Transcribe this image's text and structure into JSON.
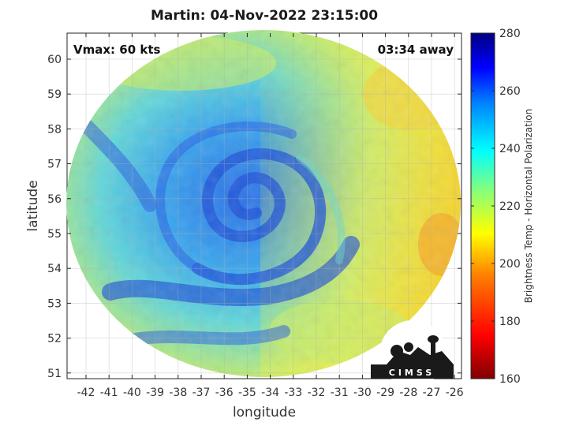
{
  "title": "Martin: 04-Nov-2022 23:15:00",
  "vmax_label": "Vmax: 60 kts",
  "time_away_label": "03:34 away",
  "x_axis_label": "longitude",
  "y_axis_label": "latitude",
  "colorbar_label": "Brightness Temp - Horizontal Polarization",
  "logo_text": "CIMSS",
  "x_ticks": [
    "-42",
    "-41",
    "-40",
    "-39",
    "-38",
    "-37",
    "-36",
    "-35",
    "-34",
    "-33",
    "-32",
    "-31",
    "-30",
    "-29",
    "-28",
    "-27",
    "-26"
  ],
  "y_ticks": [
    "60",
    "59",
    "58",
    "57",
    "56",
    "55",
    "54",
    "53",
    "52",
    "51"
  ],
  "colorbar_ticks": [
    "280",
    "260",
    "240",
    "220",
    "200",
    "180",
    "160"
  ],
  "colorbar_range": [
    160,
    280
  ],
  "colormap": [
    "#7f0000",
    "#ff0000",
    "#ff8000",
    "#ffff00",
    "#80ff80",
    "#00ffff",
    "#0080ff",
    "#0000ff",
    "#000080"
  ]
}
